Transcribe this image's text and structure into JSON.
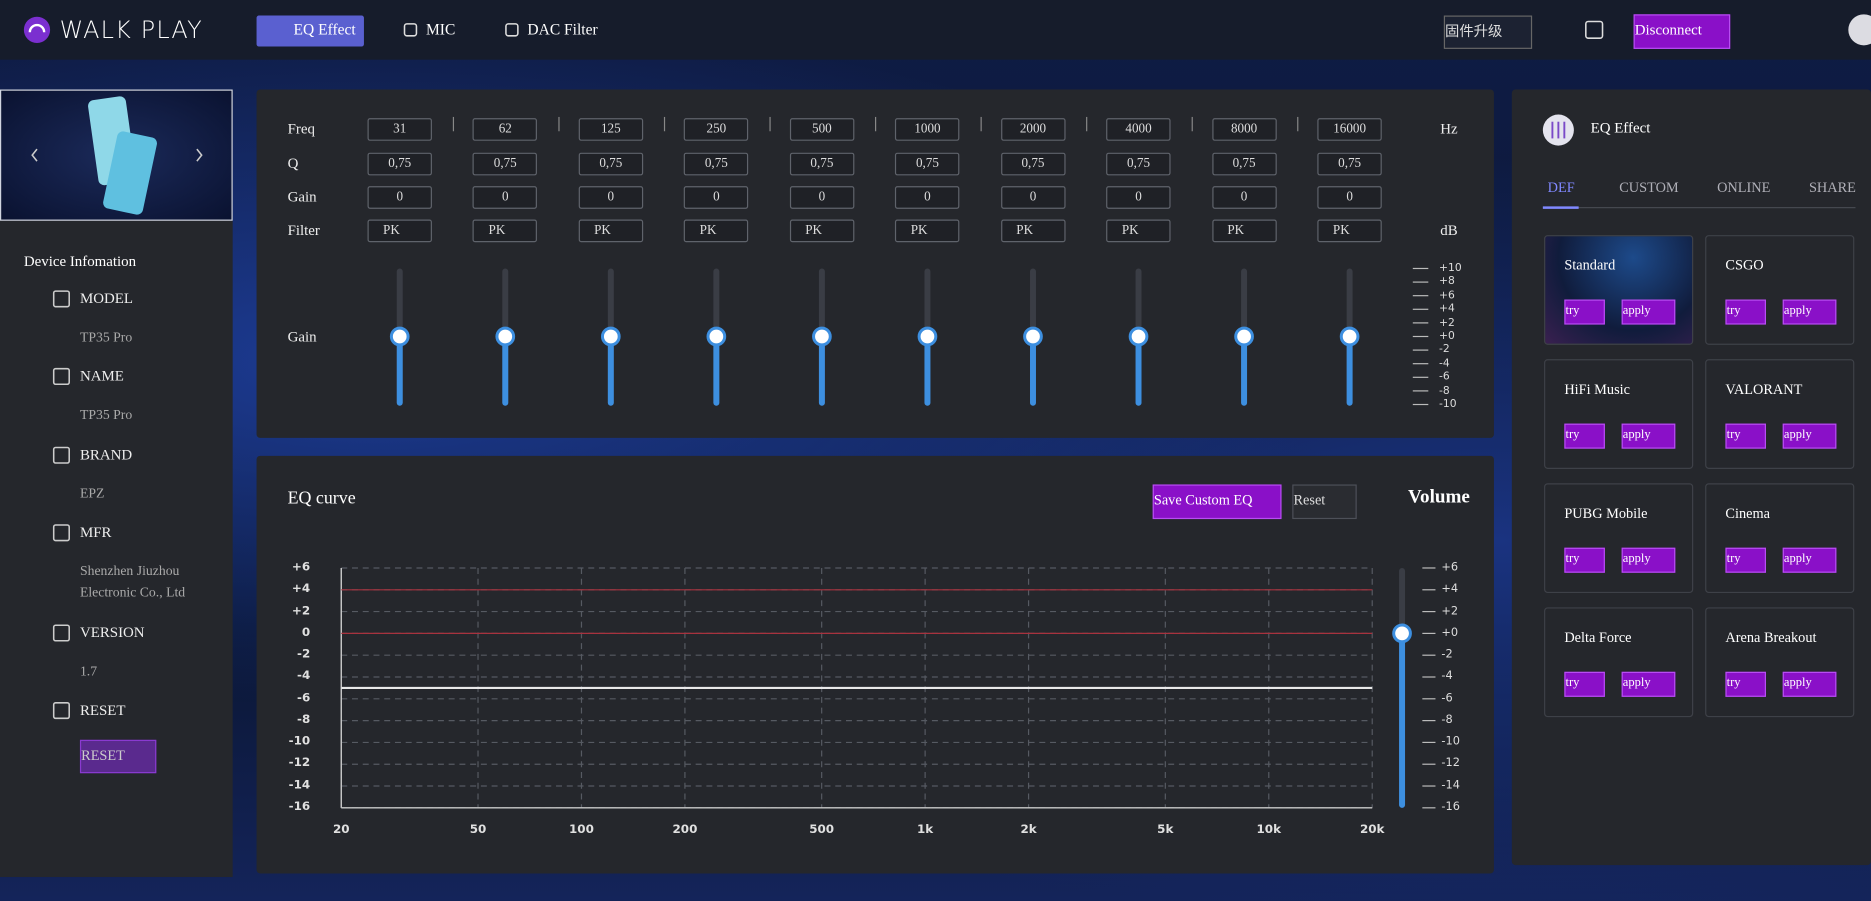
{
  "header": {
    "brand": "WALK PLAY",
    "tabs": [
      "EQ Effect",
      "MIC",
      "DAC Filter"
    ],
    "firmware": "固件升级",
    "disconnect": "Disconnect"
  },
  "device": {
    "title": "Device Infomation",
    "items": [
      {
        "label": "MODEL",
        "value": "TP35 Pro"
      },
      {
        "label": "NAME",
        "value": "TP35 Pro"
      },
      {
        "label": "BRAND",
        "value": "EPZ"
      },
      {
        "label": "MFR",
        "value": "Shenzhen Jiuzhou Electronic Co., Ltd"
      },
      {
        "label": "VERSION",
        "value": "1.7"
      },
      {
        "label": "RESET"
      }
    ],
    "reset_button": "RESET"
  },
  "eq": {
    "labels": {
      "freq": "Freq",
      "q": "Q",
      "gain": "Gain",
      "filter": "Filter"
    },
    "slider_label": "Gain",
    "hz": "Hz",
    "db": "dB",
    "bands": [
      {
        "freq": 31,
        "q": "0,75",
        "gain": 0,
        "filter": "PK"
      },
      {
        "freq": 62,
        "q": "0,75",
        "gain": 0,
        "filter": "PK"
      },
      {
        "freq": 125,
        "q": "0,75",
        "gain": 0,
        "filter": "PK"
      },
      {
        "freq": 250,
        "q": "0,75",
        "gain": 0,
        "filter": "PK"
      },
      {
        "freq": 500,
        "q": "0,75",
        "gain": 0,
        "filter": "PK"
      },
      {
        "freq": 1000,
        "q": "0,75",
        "gain": 0,
        "filter": "PK"
      },
      {
        "freq": 2000,
        "q": "0,75",
        "gain": 0,
        "filter": "PK"
      },
      {
        "freq": 4000,
        "q": "0,75",
        "gain": 0,
        "filter": "PK"
      },
      {
        "freq": 8000,
        "q": "0,75",
        "gain": 0,
        "filter": "PK"
      },
      {
        "freq": 16000,
        "q": "0,75",
        "gain": 0,
        "filter": "PK"
      }
    ],
    "scale_lim": [
      -10,
      10
    ],
    "scale": [
      {
        "value": 10,
        "label": "+10"
      },
      {
        "value": 8,
        "label": "+8"
      },
      {
        "value": 6,
        "label": "+6"
      },
      {
        "value": 4,
        "label": "+4"
      },
      {
        "value": 2,
        "label": "+2"
      },
      {
        "value": 0,
        "label": "+0"
      },
      -2,
      -4,
      -6,
      -8,
      -10
    ]
  },
  "curve": {
    "title": "EQ curve",
    "save": "Save Custom EQ",
    "reset": "Reset",
    "volume_title": "Volume",
    "log_x": true,
    "grid": true,
    "xlim": [
      20,
      20000
    ],
    "xticks": [
      20,
      50,
      100,
      200,
      500,
      {
        "value": 1000,
        "label": "1k"
      },
      {
        "value": 2000,
        "label": "2k"
      },
      {
        "value": 5000,
        "label": "5k"
      },
      {
        "value": 10000,
        "label": "10k"
      },
      {
        "value": 20000,
        "label": "20k"
      }
    ],
    "ylim": [
      -16,
      6
    ],
    "yticks": [
      {
        "value": 6,
        "label": "+6"
      },
      {
        "value": 4,
        "label": "+4"
      },
      {
        "value": 2,
        "label": "+2"
      },
      0,
      -2,
      -4,
      -6,
      -8,
      -10,
      -12,
      -14,
      -16
    ],
    "lines": [
      {
        "value": 4,
        "color": "#a8323e"
      },
      {
        "value": 0,
        "color": "#a8323e"
      },
      {
        "value": -5,
        "color": "#e8e8e8"
      }
    ],
    "volume": 0,
    "volume_lim": [
      -16,
      6
    ],
    "volume_ticks": [
      {
        "value": 6,
        "label": "+6"
      },
      {
        "value": 4,
        "label": "+4"
      },
      {
        "value": 2,
        "label": "+2"
      },
      {
        "value": 0,
        "label": "+0"
      },
      -2,
      -4,
      -6,
      -8,
      -10,
      -12,
      -14,
      -16
    ]
  },
  "presets": {
    "title": "EQ Effect",
    "tabs": [
      "DEF",
      "CUSTOM",
      "ONLINE",
      "SHARE"
    ],
    "active_tab": 0,
    "try": "try",
    "apply": "apply",
    "cards": [
      "Standard",
      "CSGO",
      "HiFi Music",
      "VALORANT",
      "PUBG Mobile",
      "Cinema",
      "Delta Force",
      "Arena Breakout"
    ]
  }
}
